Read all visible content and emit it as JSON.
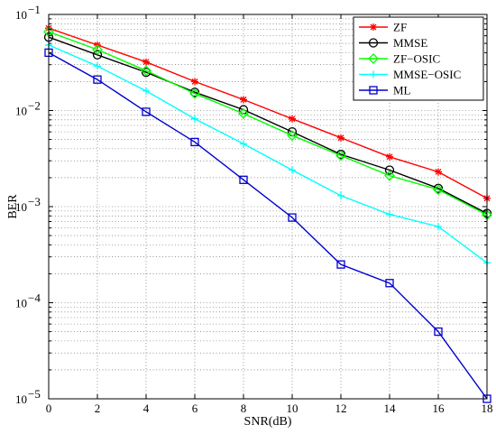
{
  "chart_data": {
    "type": "line",
    "title": "",
    "xlabel": "SNR(dB)",
    "ylabel": "BER",
    "xscale": "linear",
    "yscale": "log",
    "xlim": [
      0,
      18
    ],
    "ylim": [
      1e-05,
      0.1
    ],
    "grid": true,
    "legend_position": "top-right",
    "x": [
      0,
      2,
      4,
      6,
      8,
      10,
      12,
      14,
      16,
      18
    ],
    "x_ticks": [
      "0",
      "2",
      "4",
      "6",
      "8",
      "10",
      "12",
      "14",
      "16",
      "18"
    ],
    "y_ticks": [
      {
        "value": 0.1,
        "mantissa": "10",
        "exp": "−1"
      },
      {
        "value": 0.01,
        "mantissa": "10",
        "exp": "−2"
      },
      {
        "value": 0.001,
        "mantissa": "10",
        "exp": "−3"
      },
      {
        "value": 0.0001,
        "mantissa": "10",
        "exp": "−4"
      },
      {
        "value": 1e-05,
        "mantissa": "10",
        "exp": "−5"
      }
    ],
    "series": [
      {
        "name": "ZF",
        "color": "#ff0000",
        "marker": "star",
        "values": [
          0.072,
          0.048,
          0.032,
          0.02,
          0.013,
          0.0082,
          0.0052,
          0.0033,
          0.0023,
          0.00122
        ]
      },
      {
        "name": "MMSE",
        "color": "#000000",
        "marker": "circle",
        "values": [
          0.058,
          0.038,
          0.025,
          0.0155,
          0.0102,
          0.006,
          0.0035,
          0.0024,
          0.00155,
          0.00085
        ]
      },
      {
        "name": "ZF−OSIC",
        "color": "#00ff00",
        "marker": "diamond",
        "values": [
          0.066,
          0.043,
          0.026,
          0.015,
          0.0093,
          0.0055,
          0.0034,
          0.0021,
          0.0015,
          0.00082
        ]
      },
      {
        "name": "MMSE−OSIC",
        "color": "#00ffff",
        "marker": "plus",
        "values": [
          0.048,
          0.029,
          0.016,
          0.0082,
          0.0045,
          0.0024,
          0.0013,
          0.00083,
          0.00062,
          0.00026
        ]
      },
      {
        "name": "ML",
        "color": "#0000cc",
        "marker": "square",
        "values": [
          0.04,
          0.021,
          0.0097,
          0.0047,
          0.0019,
          0.00077,
          0.00025,
          0.00016,
          5e-05,
          1e-05
        ]
      }
    ]
  }
}
